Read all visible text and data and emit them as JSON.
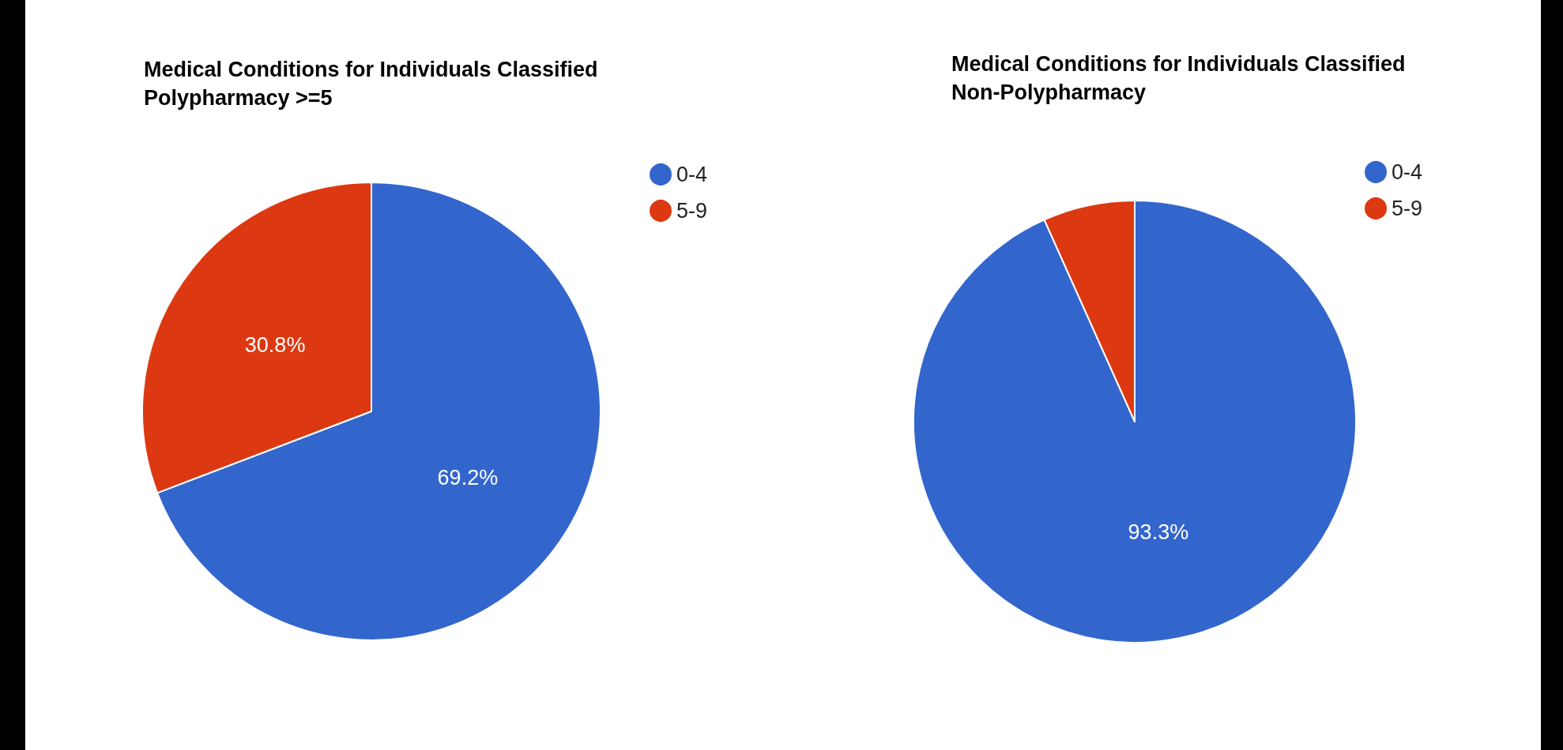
{
  "chart_data": [
    {
      "type": "pie",
      "title": "Medical Conditions for Individuals Classified Polypharmacy >=5",
      "categories": [
        "0-4",
        "5-9"
      ],
      "values": [
        69.2,
        30.8
      ],
      "colors": [
        "#3366cc",
        "#dc3912"
      ],
      "value_labels": [
        "69.2%",
        "30.8%"
      ],
      "legend": "top right"
    },
    {
      "type": "pie",
      "title": "Medical Conditions for Individuals Classified Non-Polypharmacy",
      "categories": [
        "0-4",
        "5-9"
      ],
      "values": [
        93.3,
        6.7
      ],
      "colors": [
        "#3366cc",
        "#dc3912"
      ],
      "value_labels": [
        "93.3%",
        null
      ],
      "legend": "top right"
    }
  ]
}
